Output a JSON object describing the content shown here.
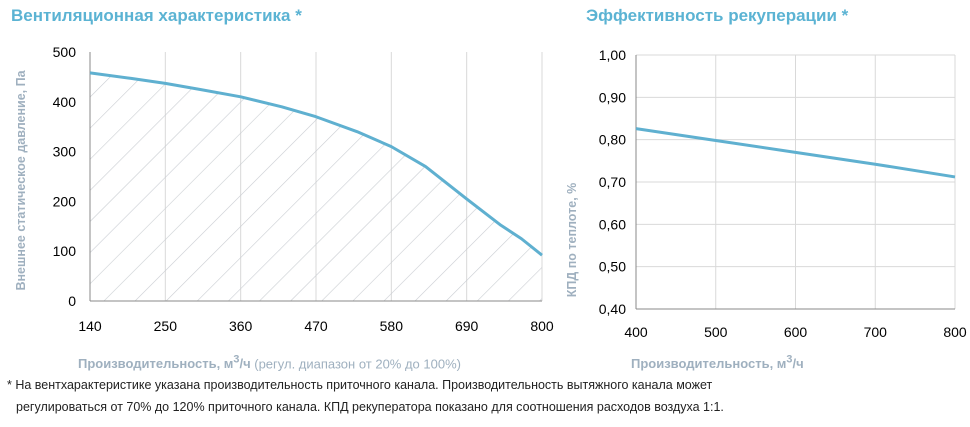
{
  "colors": {
    "accent": "#5bb3d3",
    "curve": "#5fb0d0",
    "hatch": "#c9cdd2",
    "axis_title": "#9fb0bf"
  },
  "chart_data": [
    {
      "type": "area",
      "title": "Вентиляционная характеристика *",
      "xlabel_main": "Производительность, м",
      "xlabel_sup": "3",
      "xlabel_unit": "/ч",
      "xlabel_note": " (регул. диапазон от 20% до 100%)",
      "ylabel": "Внешнее статическое давление, Па",
      "xlim": [
        140,
        800
      ],
      "ylim": [
        0,
        500
      ],
      "x_ticks": [
        "140",
        "250",
        "360",
        "470",
        "580",
        "690",
        "800"
      ],
      "y_ticks": [
        "0",
        "100",
        "200",
        "300",
        "400",
        "500"
      ],
      "grid": "vertical",
      "fill": "hatched",
      "x": [
        140,
        200,
        250,
        300,
        360,
        420,
        470,
        530,
        580,
        630,
        690,
        740,
        770,
        800
      ],
      "y": [
        458,
        447,
        437,
        425,
        410,
        390,
        370,
        340,
        310,
        270,
        205,
        152,
        125,
        92
      ]
    },
    {
      "type": "line",
      "title": "Эффективность рекуперации *",
      "xlabel_main": "Производительность, м",
      "xlabel_sup": "3",
      "xlabel_unit": "/ч",
      "ylabel": "КПД по теплоте, %",
      "xlim": [
        400,
        800
      ],
      "ylim": [
        0.4,
        1.0
      ],
      "x_ticks": [
        "400",
        "500",
        "600",
        "700",
        "800"
      ],
      "y_ticks": [
        "0,40",
        "0,50",
        "0,60",
        "0,70",
        "0,80",
        "0,90",
        "1,00"
      ],
      "grid": "both",
      "x": [
        400,
        500,
        600,
        700,
        800
      ],
      "y": [
        0.826,
        0.798,
        0.77,
        0.742,
        0.712
      ]
    }
  ],
  "footnote": {
    "line1": "* На вентхарактеристике указана производительность приточного канала. Производительность вытяжного канала может",
    "line2": "регулироваться от 70% до 120% приточного канала. КПД рекуператора показано для соотношения расходов воздуха 1:1."
  }
}
